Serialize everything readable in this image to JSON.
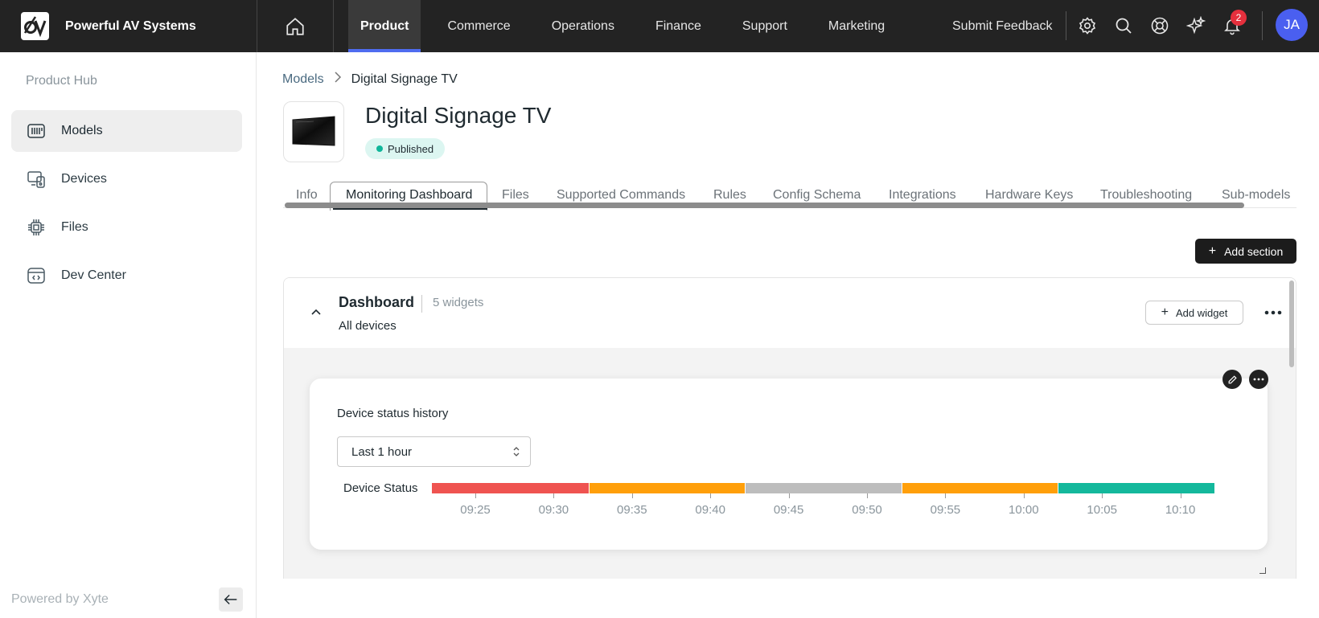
{
  "app": {
    "brand_name": "Powerful AV Systems",
    "nav": [
      {
        "label": "Product",
        "active": true
      },
      {
        "label": "Commerce",
        "active": false
      },
      {
        "label": "Operations",
        "active": false
      },
      {
        "label": "Finance",
        "active": false
      },
      {
        "label": "Support",
        "active": false
      },
      {
        "label": "Marketing",
        "active": false
      }
    ],
    "feedback_label": "Submit Feedback",
    "notification_count": "2",
    "avatar_initials": "JA",
    "accent_color": "#4f6cf0"
  },
  "sidebar": {
    "title": "Product Hub",
    "items": [
      {
        "label": "Models",
        "icon": "models-icon",
        "active": true
      },
      {
        "label": "Devices",
        "icon": "devices-icon",
        "active": false
      },
      {
        "label": "Files",
        "icon": "chip-icon",
        "active": false
      },
      {
        "label": "Dev Center",
        "icon": "code-window-icon",
        "active": false
      }
    ],
    "footer": "Powered by Xyte"
  },
  "breadcrumb": {
    "parent": "Models",
    "current": "Digital Signage TV"
  },
  "product": {
    "title": "Digital Signage TV",
    "status": "Published",
    "status_color": "#10b69a"
  },
  "tabs": [
    {
      "label": "Info",
      "active": false
    },
    {
      "label": "Monitoring Dashboard",
      "active": true
    },
    {
      "label": "Files",
      "active": false
    },
    {
      "label": "Supported Commands",
      "active": false
    },
    {
      "label": "Rules",
      "active": false
    },
    {
      "label": "Config Schema",
      "active": false
    },
    {
      "label": "Integrations",
      "active": false
    },
    {
      "label": "Hardware Keys",
      "active": false
    },
    {
      "label": "Troubleshooting",
      "active": false
    },
    {
      "label": "Sub-models",
      "active": false
    }
  ],
  "actions": {
    "add_section": "Add section",
    "add_widget": "Add widget"
  },
  "dashboard": {
    "title": "Dashboard",
    "widget_count": "5 widgets",
    "scope": "All devices"
  },
  "widget": {
    "title": "Device status history",
    "range_value": "Last 1 hour",
    "series_label": "Device Status",
    "segments": [
      {
        "color": "#ef5350"
      },
      {
        "color": "#ff9f0a"
      },
      {
        "color": "#bdbdbd"
      },
      {
        "color": "#ff9f0a"
      },
      {
        "color": "#14b89c"
      }
    ],
    "ticks": [
      "09:25",
      "09:30",
      "09:35",
      "09:40",
      "09:45",
      "09:50",
      "09:55",
      "10:00",
      "10:05",
      "10:10"
    ]
  }
}
